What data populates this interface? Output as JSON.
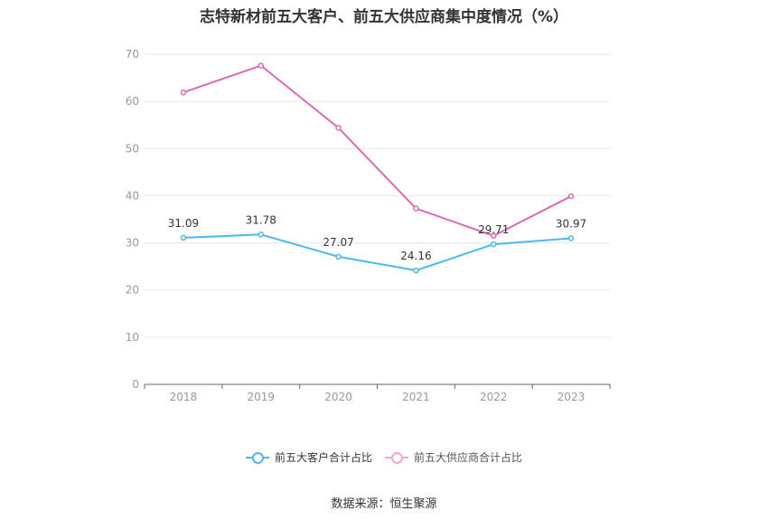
{
  "chart_data": {
    "type": "line",
    "title": "志特新材前五大客户、前五大供应商集中度情况（%）",
    "categories": [
      "2018",
      "2019",
      "2020",
      "2021",
      "2022",
      "2023"
    ],
    "ylim": [
      0,
      70
    ],
    "yticks": [
      0,
      10,
      20,
      30,
      40,
      50,
      60,
      70
    ],
    "grid": true,
    "legend_position": "bottom",
    "series": [
      {
        "name": "前五大客户合计占比",
        "color": "#4cb8ec",
        "values": [
          31.09,
          31.78,
          27.07,
          24.16,
          29.71,
          30.97
        ],
        "labels": [
          "31.09",
          "31.78",
          "27.07",
          "24.16",
          "29.71",
          "30.97"
        ]
      },
      {
        "name": "前五大供应商合计占比",
        "color": "#d86cb4",
        "values": [
          61.9,
          67.6,
          54.4,
          37.3,
          31.5,
          39.9
        ]
      }
    ]
  },
  "source_text": "数据来源：恒生聚源"
}
